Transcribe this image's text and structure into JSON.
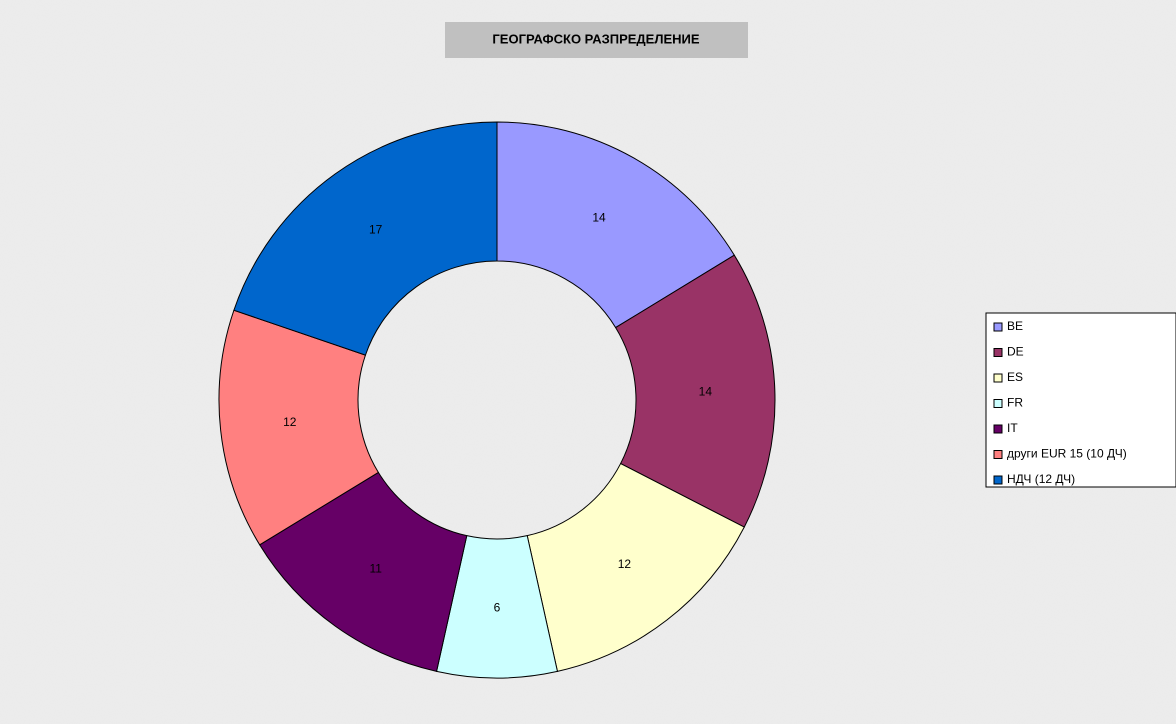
{
  "chart_data": {
    "type": "donut",
    "title": "ГЕОГРАФСКО РАЗПРЕДЕЛЕНИЕ",
    "categories": [
      "BE",
      "DE",
      "ES",
      "FR",
      "IT",
      "други EUR 15 (10 ДЧ)",
      "НДЧ (12 ДЧ)"
    ],
    "values": [
      14,
      14,
      12,
      6,
      11,
      12,
      17
    ],
    "colors": [
      "#9999ff",
      "#993366",
      "#ffffcc",
      "#ccffff",
      "#660066",
      "#ff8080",
      "#0066cc"
    ],
    "legend": "right"
  }
}
